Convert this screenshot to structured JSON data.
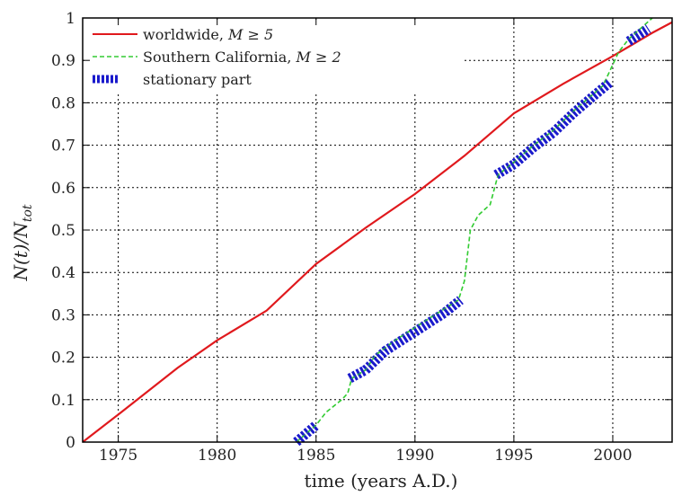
{
  "chart_data": {
    "type": "line",
    "xlabel": "time (years A.D.)",
    "ylabel": "N(t)/N_tot",
    "ylabel_parts": {
      "main": "N(t)/N",
      "sub": "tot"
    },
    "xlim": [
      1973.2,
      2003.0
    ],
    "ylim": [
      0,
      1
    ],
    "xticks": [
      1975,
      1980,
      1985,
      1990,
      1995,
      2000
    ],
    "yticks": [
      0,
      0.1,
      0.2,
      0.3,
      0.4,
      0.5,
      0.6,
      0.7,
      0.8,
      0.9,
      1
    ],
    "grid": true,
    "legend_position": "top-left",
    "series": [
      {
        "name": "worldwide, M ≥ 5",
        "legend_plain": "worldwide, ",
        "legend_math": "M ≥ 5",
        "color": "#e0191d",
        "style": "solid",
        "x": [
          1973.2,
          1975,
          1978,
          1980,
          1982.5,
          1985,
          1987.5,
          1990,
          1992.5,
          1995,
          1997.5,
          2000,
          2002,
          2003
        ],
        "y": [
          0,
          0.065,
          0.175,
          0.24,
          0.31,
          0.42,
          0.505,
          0.585,
          0.675,
          0.775,
          0.845,
          0.91,
          0.965,
          0.99
        ]
      },
      {
        "name": "Southern California, M ≥ 2",
        "legend_plain": "Southern California, ",
        "legend_math": "M ≥ 2",
        "color": "#33cc33",
        "style": "dashed",
        "x": [
          1984,
          1985,
          1985.5,
          1986.3,
          1986.6,
          1986.8,
          1987.5,
          1988,
          1989,
          1990,
          1991,
          1992.2,
          1992.5,
          1992.8,
          1993.2,
          1993.8,
          1994.2,
          1995,
          1996,
          1997,
          1998,
          1999.5,
          1999.9,
          2000.3,
          2000.8,
          2002
        ],
        "y": [
          0,
          0.04,
          0.07,
          0.1,
          0.115,
          0.15,
          0.17,
          0.205,
          0.24,
          0.27,
          0.3,
          0.335,
          0.38,
          0.5,
          0.535,
          0.56,
          0.63,
          0.66,
          0.7,
          0.735,
          0.78,
          0.84,
          0.88,
          0.92,
          0.95,
          1
        ]
      },
      {
        "name": "stationary part",
        "legend_plain": "stationary part",
        "legend_math": "",
        "color": "#1a1acc",
        "style": "thick-dotted",
        "segments": [
          {
            "x": [
              1984,
              1984.5,
              1985
            ],
            "y": [
              0,
              0.02,
              0.04
            ]
          },
          {
            "x": [
              1986.7,
              1987.5,
              1988.5,
              1989.5,
              1990.5,
              1991.5,
              1992.3
            ],
            "y": [
              0.15,
              0.17,
              0.215,
              0.245,
              0.275,
              0.305,
              0.335
            ]
          },
          {
            "x": [
              1994.1,
              1995,
              1996,
              1997,
              1998,
              1999,
              1999.9
            ],
            "y": [
              0.63,
              0.655,
              0.695,
              0.73,
              0.775,
              0.815,
              0.85
            ]
          },
          {
            "x": [
              2000.8,
              2001.3,
              2001.8
            ],
            "y": [
              0.945,
              0.96,
              0.975
            ]
          }
        ]
      }
    ]
  }
}
